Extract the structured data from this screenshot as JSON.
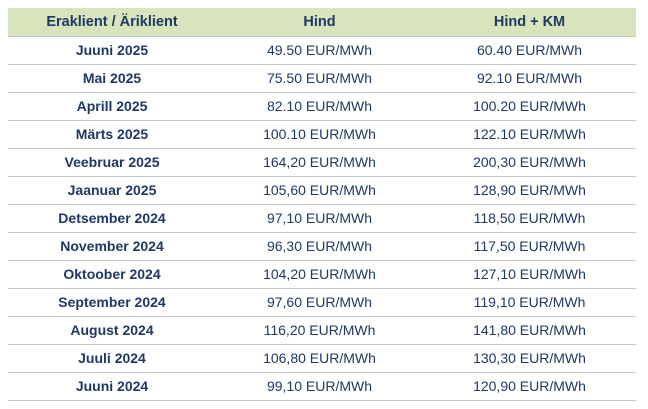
{
  "table": {
    "headers": [
      "Eraklient / Äriklient",
      "Hind",
      "Hind + KM"
    ],
    "rows": [
      {
        "month": "Juuni 2025",
        "price": "49.50 EUR/MWh",
        "price_vat": "60.40 EUR/MWh"
      },
      {
        "month": "Mai 2025",
        "price": "75.50 EUR/MWh",
        "price_vat": "92.10 EUR/MWh"
      },
      {
        "month": "Aprill 2025",
        "price": "82.10 EUR/MWh",
        "price_vat": "100.20 EUR/MWh"
      },
      {
        "month": "Märts 2025",
        "price": "100.10 EUR/MWh",
        "price_vat": "122.10 EUR/MWh"
      },
      {
        "month": "Veebruar 2025",
        "price": "164,20 EUR/MWh",
        "price_vat": "200,30 EUR/MWh"
      },
      {
        "month": "Jaanuar 2025",
        "price": "105,60 EUR/MWh",
        "price_vat": "128,90 EUR/MWh"
      },
      {
        "month": "Detsember 2024",
        "price": "97,10 EUR/MWh",
        "price_vat": "118,50 EUR/MWh"
      },
      {
        "month": "November 2024",
        "price": "96,30 EUR/MWh",
        "price_vat": "117,50 EUR/MWh"
      },
      {
        "month": "Oktoober 2024",
        "price": "104,20 EUR/MWh",
        "price_vat": "127,10 EUR/MWh"
      },
      {
        "month": "September 2024",
        "price": "97,60 EUR/MWh",
        "price_vat": "119,10 EUR/MWh"
      },
      {
        "month": "August 2024",
        "price": "116,20 EUR/MWh",
        "price_vat": "141,80 EUR/MWh"
      },
      {
        "month": "Juuli 2024",
        "price": "106,80 EUR/MWh",
        "price_vat": "130,30 EUR/MWh"
      },
      {
        "month": "Juuni 2024",
        "price": "99,10 EUR/MWh",
        "price_vat": "120,90 EUR/MWh"
      }
    ]
  },
  "colors": {
    "header_bg": "#d8e4bc",
    "text": "#1f3864",
    "row_border": "#c6c6c6"
  }
}
